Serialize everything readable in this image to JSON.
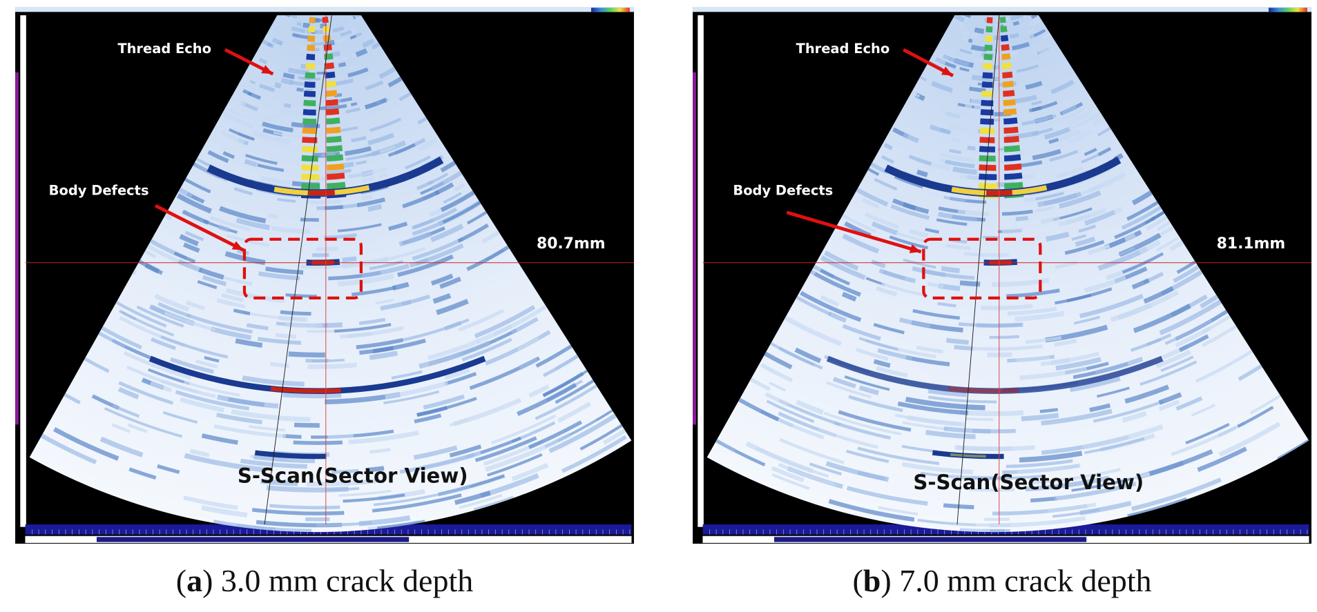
{
  "panels": [
    {
      "thread_label": "Thread Echo",
      "defect_label": "Body Defects",
      "measurement": "80.7mm",
      "view_label": "S-Scan(Sector View)",
      "caption": [
        "(",
        "a",
        ") 3.0 mm crack depth"
      ]
    },
    {
      "thread_label": "Thread Echo",
      "defect_label": "Body Defects",
      "measurement": "81.1mm",
      "view_label": "S-Scan(Sector View)",
      "caption": [
        "(",
        "b",
        ") 7.0 mm crack depth"
      ]
    }
  ]
}
